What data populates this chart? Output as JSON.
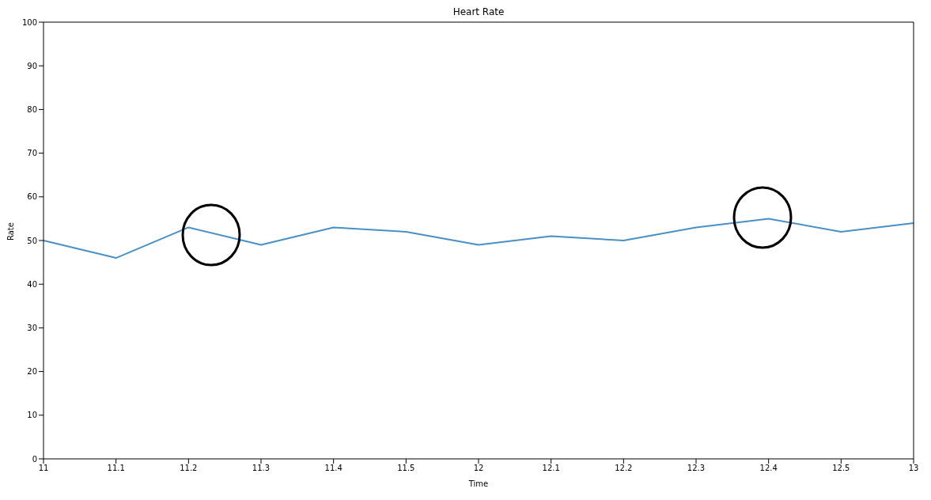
{
  "chart_data": {
    "type": "line",
    "title": "Heart Rate",
    "xlabel": "Time",
    "ylabel": "Rate",
    "categories": [
      "11",
      "11.1",
      "11.2",
      "11.3",
      "11.4",
      "11.5",
      "12",
      "12.1",
      "12.2",
      "12.3",
      "12.4",
      "12.5",
      "13"
    ],
    "series": [
      {
        "color": "#4a90c4",
        "values": [
          50,
          46,
          53,
          49,
          53,
          52,
          49,
          51,
          50,
          53,
          55,
          52,
          54
        ]
      }
    ],
    "ylim": [
      0,
      100
    ],
    "yticks": [
      0,
      10,
      20,
      30,
      40,
      50,
      60,
      70,
      80,
      90,
      100
    ],
    "grid": false,
    "legend": false,
    "marker": "none",
    "line_style": "solid"
  }
}
